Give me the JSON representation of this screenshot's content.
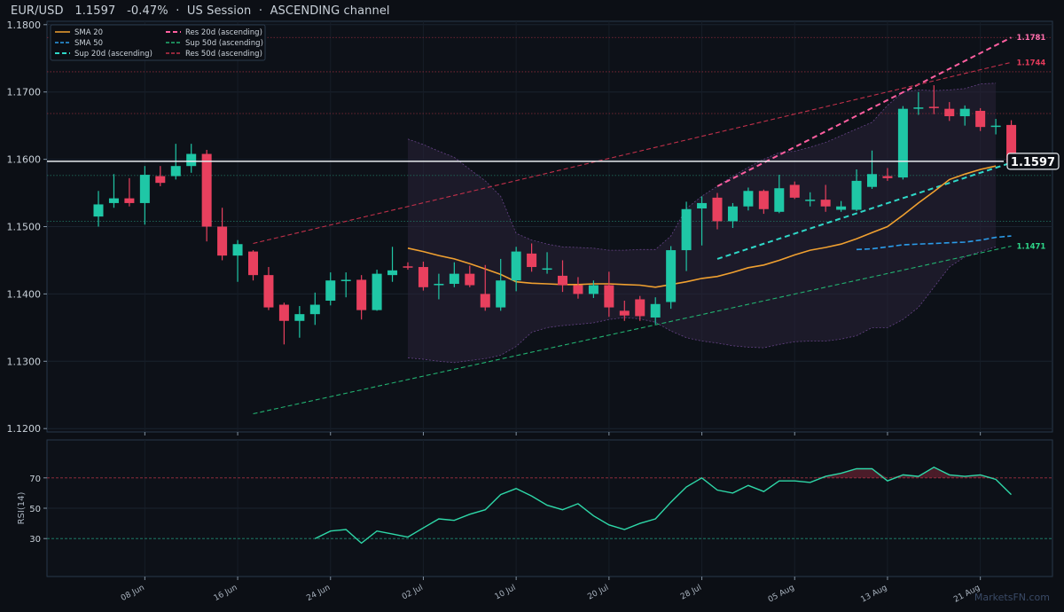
{
  "header": {
    "symbol": "EUR/USD",
    "price": "1.1597",
    "change": "-0.47%",
    "session": "US Session",
    "channel": "ASCENDING channel",
    "sep": "·"
  },
  "watermark": "MarketsFN.com",
  "colors": {
    "background": "#0c0f15",
    "bull": "#1fc7a6",
    "bear": "#e8405e",
    "sma20": "#f0a030",
    "sma50": "#2b9be8",
    "sup20": "#2ed8c8",
    "res20": "#ff5fa0",
    "sup50": "#22b070",
    "res50": "#c0304a",
    "band": "#7a4fa0",
    "rsi": "#2ed8a8"
  },
  "chart_data": {
    "type": "candlestick",
    "price_axis": {
      "ylim": [
        1.1195,
        1.1805
      ],
      "ticks": [
        "1.1200",
        "1.1300",
        "1.1400",
        "1.1500",
        "1.1600",
        "1.1700",
        "1.1800"
      ],
      "tick_values": [
        1.12,
        1.13,
        1.14,
        1.15,
        1.16,
        1.17,
        1.18
      ]
    },
    "x_axis": {
      "labels": [
        "08 Jun",
        "16 Jun",
        "24 Jun",
        "02 Jul",
        "10 Jul",
        "20 Jul",
        "28 Jul",
        "05 Aug",
        "13 Aug",
        "21 Aug"
      ],
      "label_index": [
        3,
        9,
        15,
        21,
        27,
        33,
        39,
        45,
        51,
        57
      ]
    },
    "candles": [
      [
        1.1515,
        1.1533,
        1.1553,
        1.15
      ],
      [
        1.1535,
        1.1542,
        1.1578,
        1.1528
      ],
      [
        1.1542,
        1.1535,
        1.1572,
        1.153
      ],
      [
        1.1535,
        1.1577,
        1.159,
        1.1503
      ],
      [
        1.1575,
        1.1565,
        1.159,
        1.156
      ],
      [
        1.1575,
        1.159,
        1.1623,
        1.157
      ],
      [
        1.159,
        1.1608,
        1.1623,
        1.158
      ],
      [
        1.1608,
        1.15,
        1.1614,
        1.1478
      ],
      [
        1.15,
        1.1457,
        1.1528,
        1.145
      ],
      [
        1.1457,
        1.1474,
        1.148,
        1.1418
      ],
      [
        1.1463,
        1.1428,
        1.1465,
        1.142
      ],
      [
        1.1428,
        1.138,
        1.144,
        1.1376
      ],
      [
        1.1384,
        1.136,
        1.1387,
        1.1325
      ],
      [
        1.136,
        1.137,
        1.1382,
        1.1335
      ],
      [
        1.137,
        1.1384,
        1.1402,
        1.1354
      ],
      [
        1.139,
        1.142,
        1.1432,
        1.1383
      ],
      [
        1.142,
        1.1421,
        1.1432,
        1.1395
      ],
      [
        1.1421,
        1.1376,
        1.1428,
        1.1362
      ],
      [
        1.1376,
        1.143,
        1.1436,
        1.1375
      ],
      [
        1.1428,
        1.1435,
        1.147,
        1.1418
      ],
      [
        1.1441,
        1.144,
        1.1447,
        1.1436
      ],
      [
        1.144,
        1.141,
        1.1448,
        1.1405
      ],
      [
        1.1413,
        1.1415,
        1.143,
        1.1392
      ],
      [
        1.1415,
        1.143,
        1.1447,
        1.141
      ],
      [
        1.143,
        1.1413,
        1.1442,
        1.141
      ],
      [
        1.14,
        1.138,
        1.1443,
        1.1375
      ],
      [
        1.138,
        1.142,
        1.1452,
        1.1375
      ],
      [
        1.142,
        1.1463,
        1.147,
        1.1404
      ],
      [
        1.146,
        1.144,
        1.1475,
        1.1433
      ],
      [
        1.1437,
        1.1438,
        1.1462,
        1.143
      ],
      [
        1.1427,
        1.1413,
        1.145,
        1.1403
      ],
      [
        1.1413,
        1.14,
        1.1425,
        1.1393
      ],
      [
        1.14,
        1.1413,
        1.142,
        1.1394
      ],
      [
        1.1413,
        1.138,
        1.1433,
        1.1366
      ],
      [
        1.1375,
        1.1368,
        1.139,
        1.136
      ],
      [
        1.1392,
        1.1367,
        1.1397,
        1.136
      ],
      [
        1.1365,
        1.1385,
        1.1395,
        1.1355
      ],
      [
        1.1388,
        1.1465,
        1.1471,
        1.1378
      ],
      [
        1.1465,
        1.1526,
        1.1537,
        1.1434
      ],
      [
        1.1527,
        1.1535,
        1.1545,
        1.1472
      ],
      [
        1.1543,
        1.1508,
        1.155,
        1.1496
      ],
      [
        1.1508,
        1.153,
        1.1535,
        1.1498
      ],
      [
        1.153,
        1.1553,
        1.1558,
        1.1524
      ],
      [
        1.1553,
        1.1526,
        1.1555,
        1.1519
      ],
      [
        1.1522,
        1.1557,
        1.1577,
        1.152
      ],
      [
        1.1562,
        1.1543,
        1.1567,
        1.1541
      ],
      [
        1.154,
        1.154,
        1.1551,
        1.153
      ],
      [
        1.154,
        1.153,
        1.1562,
        1.1522
      ],
      [
        1.1525,
        1.153,
        1.1538,
        1.1522
      ],
      [
        1.1525,
        1.1568,
        1.1585,
        1.1523
      ],
      [
        1.1559,
        1.1578,
        1.1613,
        1.1556
      ],
      [
        1.1575,
        1.1572,
        1.1587,
        1.1568
      ],
      [
        1.1573,
        1.1675,
        1.1679,
        1.157
      ],
      [
        1.1676,
        1.1677,
        1.17,
        1.1666
      ],
      [
        1.1678,
        1.1676,
        1.171,
        1.1667
      ],
      [
        1.1675,
        1.1664,
        1.1685,
        1.1657
      ],
      [
        1.1664,
        1.1675,
        1.168,
        1.165
      ],
      [
        1.1672,
        1.1648,
        1.1676,
        1.1642
      ],
      [
        1.165,
        1.165,
        1.166,
        1.1637
      ],
      [
        1.1651,
        1.1595,
        1.1658,
        1.1588
      ]
    ],
    "sma20": {
      "start_index": 20,
      "values": [
        1.1468,
        1.1463,
        1.1457,
        1.1452,
        1.1445,
        1.1437,
        1.1429,
        1.1418,
        1.1416,
        1.1415,
        1.1414,
        1.1414,
        1.1415,
        1.1415,
        1.1414,
        1.1413,
        1.141,
        1.1414,
        1.1418,
        1.1423,
        1.1426,
        1.1432,
        1.1439,
        1.1443,
        1.145,
        1.1458,
        1.1465,
        1.1469,
        1.1474,
        1.1482,
        1.1491,
        1.15,
        1.1517,
        1.1535,
        1.1552,
        1.157,
        1.1578,
        1.1585,
        1.159
      ]
    },
    "sma50": {
      "start_index": 49,
      "values": [
        1.1466,
        1.1467,
        1.147,
        1.1473,
        1.1474,
        1.1475,
        1.1476,
        1.1477,
        1.148,
        1.1484,
        1.1486
      ]
    },
    "bollinger": {
      "start_index": 20,
      "upper": [
        1.163,
        1.1622,
        1.1612,
        1.1603,
        1.1585,
        1.1568,
        1.1545,
        1.149,
        1.148,
        1.1474,
        1.147,
        1.1469,
        1.1468,
        1.1465,
        1.1465,
        1.1466,
        1.1466,
        1.1486,
        1.1527,
        1.1545,
        1.156,
        1.1575,
        1.1588,
        1.16,
        1.161,
        1.1612,
        1.1618,
        1.1625,
        1.1635,
        1.1645,
        1.1655,
        1.168,
        1.17,
        1.1703,
        1.1702,
        1.1703,
        1.1705,
        1.1712,
        1.1713
      ],
      "lower": [
        1.1305,
        1.1303,
        1.13,
        1.1298,
        1.1301,
        1.1304,
        1.1309,
        1.1322,
        1.1343,
        1.135,
        1.1353,
        1.1355,
        1.1357,
        1.1362,
        1.1365,
        1.1363,
        1.1358,
        1.1345,
        1.1335,
        1.133,
        1.1327,
        1.1323,
        1.1321,
        1.132,
        1.1325,
        1.1329,
        1.133,
        1.133,
        1.1333,
        1.1338,
        1.135,
        1.135,
        1.1362,
        1.138,
        1.141,
        1.144,
        1.1455,
        1.1463,
        1.147
      ]
    },
    "trendlines": [
      {
        "name": "Res 20d (ascending)",
        "from": [
          40,
          1.156
        ],
        "to": [
          59,
          1.1781
        ],
        "label": "1.1781",
        "style": "thick-dash"
      },
      {
        "name": "Sup 20d (ascending)",
        "from": [
          40,
          1.1452
        ],
        "to": [
          59,
          1.1595
        ],
        "style": "thick-dash"
      },
      {
        "name": "Res 50d (ascending)",
        "from": [
          10,
          1.1475
        ],
        "to": [
          59,
          1.1744
        ],
        "label": "1.1744",
        "style": "thin-dash"
      },
      {
        "name": "Sup 50d (ascending)",
        "from": [
          10,
          1.1222
        ],
        "to": [
          59,
          1.1471
        ],
        "label": "1.1471",
        "style": "thin-dash"
      }
    ],
    "hlines": [
      1.1781,
      1.173,
      1.1668,
      1.1576,
      1.1508
    ],
    "current_price": {
      "value": 1.1597,
      "label": "1.1597"
    },
    "legend": [
      {
        "name": "SMA 20",
        "color": "#f0a030",
        "dash": "solid"
      },
      {
        "name": "SMA 50",
        "color": "#2b9be8",
        "dash": "dash"
      },
      {
        "name": "Sup 20d (ascending)",
        "color": "#2ed8c8",
        "dash": "thick"
      },
      {
        "name": "Res 20d (ascending)",
        "color": "#ff5fa0",
        "dash": "thick"
      },
      {
        "name": "Sup 50d (ascending)",
        "color": "#22b070",
        "dash": "dash"
      },
      {
        "name": "Res 50d (ascending)",
        "color": "#c0304a",
        "dash": "dash"
      }
    ],
    "legend_position": "top-left",
    "rsi": {
      "label": "RSI(14)",
      "ylim": [
        5,
        95
      ],
      "ticks": [
        "30",
        "50",
        "70"
      ],
      "tick_values": [
        30,
        50,
        70
      ],
      "overbought": 70,
      "oversold": 30,
      "start_index": 14,
      "values": [
        30,
        35,
        36,
        27,
        35,
        33,
        31,
        37,
        43,
        42,
        46,
        49,
        59,
        63,
        58,
        52,
        49,
        53,
        45,
        39,
        36,
        40,
        43,
        54,
        64,
        70,
        62,
        60,
        65,
        61,
        68,
        68,
        67,
        71,
        73,
        76,
        76,
        68,
        72,
        71,
        77,
        72,
        71,
        72,
        69,
        59
      ]
    }
  }
}
